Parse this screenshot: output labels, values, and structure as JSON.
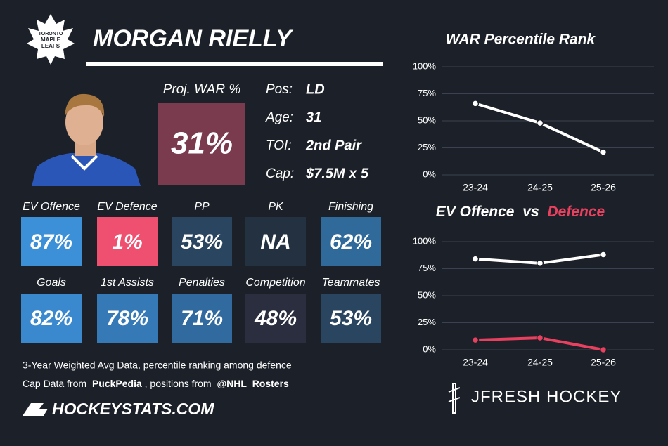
{
  "logo_text": [
    "TORONTO",
    "MAPLE",
    "LEAFS"
  ],
  "player": {
    "name": "MORGAN RIELLY",
    "proj_war_label": "Proj. WAR %",
    "proj_war_value": "31%",
    "proj_war_color": "#7b3b4f",
    "info": [
      {
        "label": "Pos:",
        "value": "LD"
      },
      {
        "label": "Age:",
        "value": "31"
      },
      {
        "label": "TOI:",
        "value": "2nd Pair"
      },
      {
        "label": "Cap:",
        "value": "$7.5M x 5"
      }
    ]
  },
  "stats": {
    "rows": [
      [
        {
          "label": "EV Offence",
          "value": "87%",
          "color": "#3b90d8"
        },
        {
          "label": "EV Defence",
          "value": "1%",
          "color": "#f0506f"
        },
        {
          "label": "PP",
          "value": "53%",
          "color": "#2a4560"
        },
        {
          "label": "PK",
          "value": "NA",
          "color": "#233140"
        },
        {
          "label": "Finishing",
          "value": "62%",
          "color": "#2f6a9b"
        }
      ],
      [
        {
          "label": "Goals",
          "value": "82%",
          "color": "#3a89cf"
        },
        {
          "label": "1st Assists",
          "value": "78%",
          "color": "#3579b6"
        },
        {
          "label": "Penalties",
          "value": "71%",
          "color": "#316a9e"
        },
        {
          "label": "Competition",
          "value": "48%",
          "color": "#2a2e3e"
        },
        {
          "label": "Teammates",
          "value": "53%",
          "color": "#2a4560"
        }
      ]
    ]
  },
  "footer": {
    "line1": "3-Year Weighted Avg Data, percentile ranking among defence",
    "line2": [
      "Cap Data from",
      "PuckPedia",
      ", positions from",
      "@NHL_Rosters"
    ],
    "brand": "HOCKEYSTATS.COM",
    "credit": "JFRESH HOCKEY"
  },
  "chart_data": [
    {
      "type": "line",
      "title": "WAR Percentile Rank",
      "categories": [
        "23-24",
        "24-25",
        "25-26"
      ],
      "values": [
        66,
        48,
        21
      ],
      "color": "#ffffff",
      "ylim": [
        0,
        100
      ],
      "yticks": [
        {
          "value": 0,
          "label": "0%"
        },
        {
          "value": 25,
          "label": "25%"
        },
        {
          "value": 50,
          "label": "50%"
        },
        {
          "value": 75,
          "label": "75%"
        },
        {
          "value": 100,
          "label": "100%"
        }
      ],
      "grid": true
    },
    {
      "type": "line",
      "title_link": "vs",
      "categories": [
        "23-24",
        "24-25",
        "25-26"
      ],
      "series": [
        {
          "name": "EV Offence",
          "color": "#ffffff",
          "values": [
            84,
            80,
            88
          ]
        },
        {
          "name": "Defence",
          "color": "#e8405e",
          "values": [
            9,
            11,
            0
          ]
        }
      ],
      "ylim": [
        0,
        100
      ],
      "yticks": [
        {
          "value": 0,
          "label": "0%"
        },
        {
          "value": 25,
          "label": "25%"
        },
        {
          "value": 50,
          "label": "50%"
        },
        {
          "value": 75,
          "label": "75%"
        },
        {
          "value": 100,
          "label": "100%"
        }
      ],
      "grid": true
    }
  ]
}
